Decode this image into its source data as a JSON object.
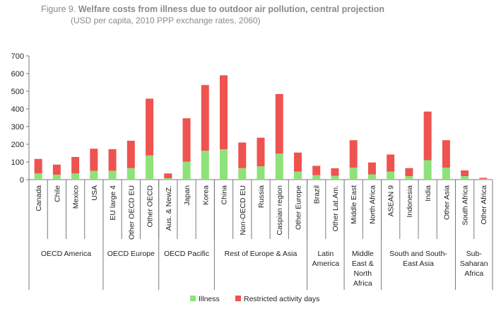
{
  "title": {
    "label": "Figure 9.",
    "text": "Welfare costs from illness due to outdoor air pollution, central projection"
  },
  "subtitle": "(USD per capita, 2010 PPP exchange rates, 2060)",
  "colors": {
    "illness": "#8ee27a",
    "restricted": "#ef5350",
    "axis": "#7a7a7a"
  },
  "chart_data": {
    "type": "bar",
    "stacked": true,
    "ylim": [
      0,
      700
    ],
    "yticks": [
      0,
      100,
      200,
      300,
      400,
      500,
      600,
      700
    ],
    "grid": false,
    "legend_position": "bottom",
    "categories": [
      "Canada",
      "Chile",
      "Mexico",
      "USA",
      "EU large 4",
      "Other OECD EU",
      "Other OECD",
      "Aus. & NewZ.",
      "Japan",
      "Korea",
      "China",
      "Non-OECD EU",
      "Russia",
      "Caspian region",
      "Other Europe",
      "Brazil",
      "Other Lat.Am.",
      "Middle East",
      "North Africa",
      "ASEAN 9",
      "Indonesia",
      "India",
      "Other Asia",
      "South Africa",
      "Other Africa"
    ],
    "series": [
      {
        "name": "Illness",
        "color": "#8ee27a",
        "values": [
          35,
          28,
          35,
          50,
          50,
          65,
          137,
          8,
          102,
          163,
          172,
          65,
          75,
          147,
          45,
          25,
          22,
          68,
          30,
          45,
          20,
          110,
          68,
          20,
          3
        ]
      },
      {
        "name": "Restricted activity days",
        "color": "#ef5350",
        "values": [
          82,
          57,
          93,
          125,
          122,
          155,
          321,
          27,
          245,
          372,
          418,
          145,
          162,
          337,
          108,
          53,
          42,
          155,
          67,
          97,
          45,
          275,
          155,
          32,
          7
        ]
      }
    ],
    "groups": [
      {
        "lines": [
          "OECD America"
        ],
        "count": 4
      },
      {
        "lines": [
          "OECD Europe"
        ],
        "count": 3
      },
      {
        "lines": [
          "OECD Pacific"
        ],
        "count": 3
      },
      {
        "lines": [
          "Rest of Europe & Asia"
        ],
        "count": 5
      },
      {
        "lines": [
          "Latin",
          "America"
        ],
        "count": 2
      },
      {
        "lines": [
          "Middle",
          "East &",
          "North",
          "Africa"
        ],
        "count": 2
      },
      {
        "lines": [
          "South and South-",
          "East Asia"
        ],
        "count": 4
      },
      {
        "lines": [
          "Sub-",
          "Saharan",
          "Africa"
        ],
        "count": 2
      }
    ]
  }
}
